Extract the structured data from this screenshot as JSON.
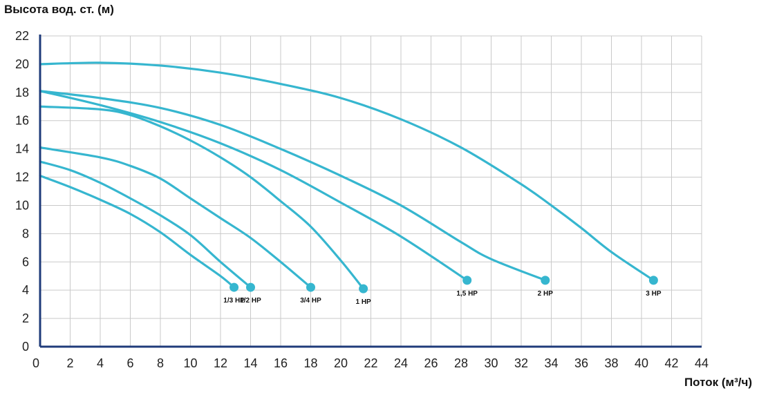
{
  "chart_data": {
    "type": "line",
    "ylabel": "Высота вод. ст. (м)",
    "xlabel": "Поток (м³/ч)",
    "xlim": [
      0,
      44
    ],
    "ylim": [
      0,
      22
    ],
    "xticks": [
      0,
      2,
      4,
      6,
      8,
      10,
      12,
      14,
      16,
      18,
      20,
      22,
      24,
      26,
      28,
      30,
      32,
      34,
      36,
      38,
      40,
      42,
      44
    ],
    "yticks": [
      0,
      2,
      4,
      6,
      8,
      10,
      12,
      14,
      16,
      18,
      20,
      22
    ],
    "grid": true,
    "line_color": "#36B6CF",
    "axis_color": "#1F3B7A",
    "series": [
      {
        "name": "1/3 HP",
        "x": [
          0,
          2,
          4,
          6,
          8,
          10,
          12,
          12.9
        ],
        "y": [
          12.1,
          11.3,
          10.4,
          9.4,
          8.1,
          6.5,
          5.0,
          4.2
        ]
      },
      {
        "name": "1/2 HP",
        "x": [
          0,
          2,
          4,
          6,
          8,
          10,
          12,
          14
        ],
        "y": [
          13.1,
          12.5,
          11.6,
          10.5,
          9.3,
          7.9,
          6.0,
          4.2
        ]
      },
      {
        "name": "3/4 HP",
        "x": [
          0,
          4,
          6,
          8,
          10,
          12,
          14,
          16,
          18
        ],
        "y": [
          14.1,
          13.4,
          12.8,
          11.9,
          10.5,
          9.1,
          7.7,
          6.0,
          4.2
        ]
      },
      {
        "name": "1 HP",
        "x": [
          0,
          4,
          6,
          8,
          10,
          12,
          14,
          16,
          18,
          20,
          21.5
        ],
        "y": [
          17.0,
          16.8,
          16.4,
          15.6,
          14.6,
          13.4,
          12.0,
          10.3,
          8.5,
          6.1,
          4.1
        ]
      },
      {
        "name": "1,5 HP",
        "x": [
          0,
          4,
          8,
          12,
          16,
          20,
          24,
          28.4
        ],
        "y": [
          18.1,
          17.1,
          15.9,
          14.4,
          12.5,
          10.2,
          7.8,
          4.7
        ]
      },
      {
        "name": "2 HP",
        "x": [
          0,
          4,
          8,
          12,
          16,
          20,
          24,
          28,
          30,
          33.6
        ],
        "y": [
          18.1,
          17.6,
          16.9,
          15.7,
          14.0,
          12.1,
          10.0,
          7.4,
          6.2,
          4.7
        ]
      },
      {
        "name": "3 HP",
        "x": [
          0,
          4,
          8,
          12,
          16,
          20,
          24,
          28,
          32,
          34,
          36,
          38,
          40.8
        ],
        "y": [
          20.0,
          20.1,
          19.9,
          19.4,
          18.6,
          17.6,
          16.1,
          14.1,
          11.5,
          10.0,
          8.4,
          6.7,
          4.7
        ]
      }
    ]
  }
}
